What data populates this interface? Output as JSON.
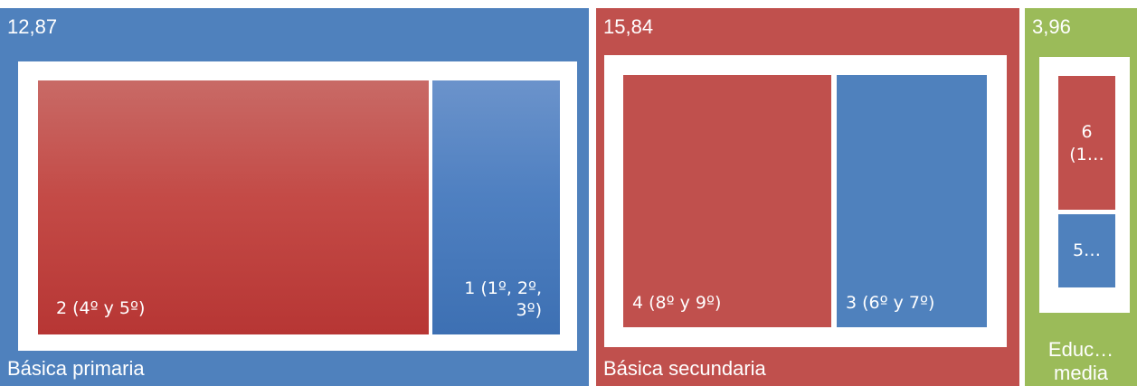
{
  "colors": {
    "primaria": "#4f81bd",
    "secundaria": "#c0504d",
    "media": "#9bbb59",
    "red": "#c0504d",
    "blue": "#4f81bd"
  },
  "chart_data": {
    "type": "treemap",
    "groups": [
      {
        "name": "Básica primaria",
        "value_label": "12,87",
        "value": 12.87,
        "children": [
          {
            "label": "2 (4º y 5º)",
            "color": "red"
          },
          {
            "label": "1 (1º, 2º, 3º)",
            "line1": "1 (1º, 2º,",
            "line2": "3º)",
            "color": "blue"
          }
        ]
      },
      {
        "name": "Básica secundaria",
        "value_label": "15,84",
        "value": 15.84,
        "children": [
          {
            "label": "4 (8º y 9º)",
            "color": "red"
          },
          {
            "label": "3 (6º y 7º)",
            "color": "blue"
          }
        ]
      },
      {
        "name_line1": "Educ…",
        "name_line2": "media",
        "value_label": "3,96",
        "value": 3.96,
        "children": [
          {
            "line1": "6",
            "line2": "(1…",
            "color": "red"
          },
          {
            "label": "5…",
            "color": "blue"
          }
        ]
      }
    ]
  }
}
